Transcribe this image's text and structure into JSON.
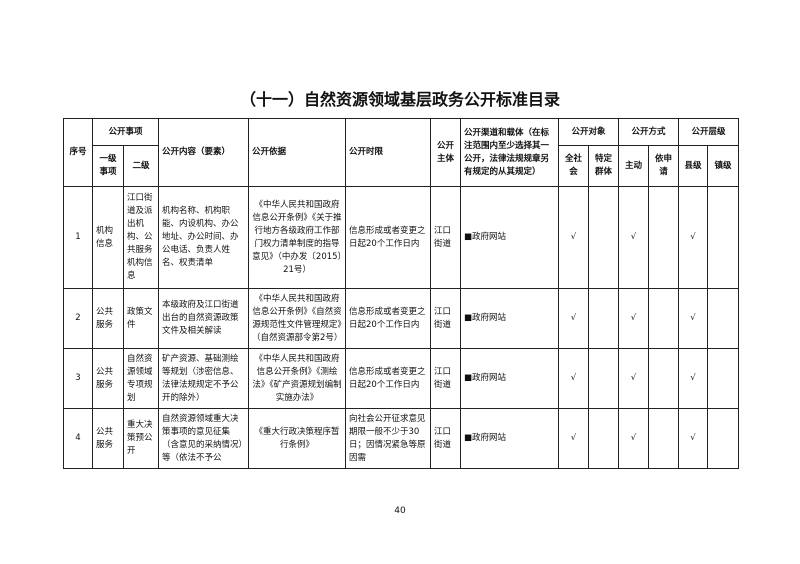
{
  "title": "（十一）自然资源领域基层政务公开标准目录",
  "headers": {
    "seq": "序号",
    "item": "公开事项",
    "level1": "一级事项",
    "level2": "二级",
    "content": "公开内容（要素）",
    "basis": "公开依据",
    "time": "公开时限",
    "subject": "公开主体",
    "channel": "公开渠道和载体（在标注范围内至少选择其一公开，法律法规规章另有规定的从其规定）",
    "target": "公开对象",
    "target_all": "全社会",
    "target_specific": "特定群体",
    "mode": "公开方式",
    "mode_active": "主动",
    "mode_request": "依申请",
    "level": "公开层级",
    "level_county": "县级",
    "level_town": "镇级"
  },
  "rows": [
    {
      "seq": "1",
      "l1": "机构信息",
      "l2": "江口街道及派出机构、公共服务机构信息",
      "content": "机构名称、机构职能、内设机构、办公地址、办公时间、办公电话、负责人姓名、权责清单",
      "basis": "《中华人民共和国政府信息公开条例》《关于推行地方各级政府工作部门权力清单制度的指导意见》（中办发〔2015〕21号）",
      "time": "信息形成或者变更之日起20个工作日内",
      "subject": "江口街道",
      "channel": "■政府网站",
      "all": "√",
      "specific": "",
      "active": "√",
      "request": "",
      "county": "√",
      "town": ""
    },
    {
      "seq": "2",
      "l1": "公共服务",
      "l2": "政策文件",
      "content": "本级政府及江口街道出台的自然资源政策文件及相关解读",
      "basis": "《中华人民共和国政府信息公开条例》《自然资源规范性文件管理规定》（自然资源部令第2号）",
      "time": "信息形成或者变更之日起20个工作日内",
      "subject": "江口街道",
      "channel": "■政府网站",
      "all": "√",
      "specific": "",
      "active": "√",
      "request": "",
      "county": "√",
      "town": ""
    },
    {
      "seq": "3",
      "l1": "公共服务",
      "l2": "自然资源领域专项规划",
      "content": "矿产资源、基础测绘等规划（涉密信息、法律法规规定不予公开的除外）",
      "basis": "《中华人民共和国政府信息公开条例》《测绘法》《矿产资源规划编制实施办法》",
      "time": "信息形成或者变更之日起20个工作日内",
      "subject": "江口街道",
      "channel": "■政府网站",
      "all": "√",
      "specific": "",
      "active": "√",
      "request": "",
      "county": "√",
      "town": ""
    },
    {
      "seq": "4",
      "l1": "公共服务",
      "l2": "重大决策预公开",
      "content": "自然资源领域重大决策事项的意见征集（含意见的采纳情况）等（依法不予公",
      "basis": "《重大行政决策程序暂行条例》",
      "time": "向社会公开征求意见期限一般不少于30日；因情况紧急等原因需",
      "subject": "江口街道",
      "channel": "■政府网站",
      "all": "√",
      "specific": "",
      "active": "√",
      "request": "",
      "county": "√",
      "town": ""
    }
  ],
  "page_number": "40"
}
